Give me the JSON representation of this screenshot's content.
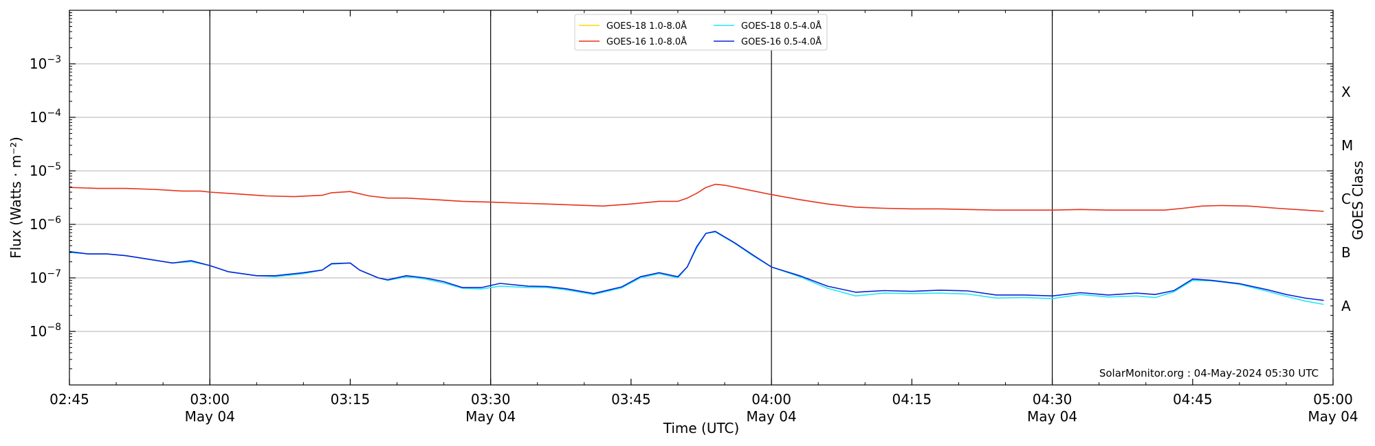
{
  "chart_data": {
    "type": "line",
    "title": "",
    "xlabel": "Time (UTC)",
    "ylabel": "Flux (Watts · m⁻²)",
    "right_axis_label": "GOES Class",
    "y_scale": "log",
    "ylim": [
      1e-09,
      0.01
    ],
    "xlim": [
      "2024-05-04T02:45",
      "2024-05-04T05:00"
    ],
    "grid": "horizontal at decades; vertical lines at half-hours",
    "legend_position": "top-center",
    "credit": "SolarMonitor.org : 04-May-2024 05:30 UTC",
    "y_ticks": [
      {
        "value": 1e-08,
        "base": "10",
        "exp": "−8"
      },
      {
        "value": 1e-07,
        "base": "10",
        "exp": "−7"
      },
      {
        "value": 1e-06,
        "base": "10",
        "exp": "−6"
      },
      {
        "value": 1e-05,
        "base": "10",
        "exp": "−5"
      },
      {
        "value": 0.0001,
        "base": "10",
        "exp": "−4"
      },
      {
        "value": 0.001,
        "base": "10",
        "exp": "−3"
      }
    ],
    "x_ticks": [
      {
        "time": "02:45",
        "date": ""
      },
      {
        "time": "03:00",
        "date": "May 04"
      },
      {
        "time": "03:15",
        "date": ""
      },
      {
        "time": "03:30",
        "date": "May 04"
      },
      {
        "time": "03:45",
        "date": ""
      },
      {
        "time": "04:00",
        "date": "May 04"
      },
      {
        "time": "04:15",
        "date": ""
      },
      {
        "time": "04:30",
        "date": "May 04"
      },
      {
        "time": "04:45",
        "date": ""
      },
      {
        "time": "05:00",
        "date": "May 04"
      }
    ],
    "goes_classes": [
      {
        "label": "X",
        "value": 0.0003
      },
      {
        "label": "M",
        "value": 3e-05
      },
      {
        "label": "C",
        "value": 3e-06
      },
      {
        "label": "B",
        "value": 3e-07
      },
      {
        "label": "A",
        "value": 3e-08
      }
    ],
    "series": [
      {
        "name": "GOES-18 1.0-8.0Å",
        "color": "#ffd700",
        "points": []
      },
      {
        "name": "GOES-16 1.0-8.0Å",
        "color": "#e8311a",
        "points": [
          [
            "02:45",
            4.9e-06
          ],
          [
            "02:48",
            4.7e-06
          ],
          [
            "02:51",
            4.7e-06
          ],
          [
            "02:54",
            4.5e-06
          ],
          [
            "02:57",
            4.2e-06
          ],
          [
            "02:59",
            4.2e-06
          ],
          [
            "03:00",
            4e-06
          ],
          [
            "03:03",
            3.7e-06
          ],
          [
            "03:06",
            3.4e-06
          ],
          [
            "03:09",
            3.3e-06
          ],
          [
            "03:12",
            3.5e-06
          ],
          [
            "03:13",
            3.9e-06
          ],
          [
            "03:15",
            4.1e-06
          ],
          [
            "03:17",
            3.4e-06
          ],
          [
            "03:19",
            3.1e-06
          ],
          [
            "03:21",
            3.1e-06
          ],
          [
            "03:24",
            2.9e-06
          ],
          [
            "03:27",
            2.7e-06
          ],
          [
            "03:30",
            2.6e-06
          ],
          [
            "03:33",
            2.5e-06
          ],
          [
            "03:36",
            2.4e-06
          ],
          [
            "03:39",
            2.3e-06
          ],
          [
            "03:42",
            2.2e-06
          ],
          [
            "03:45",
            2.4e-06
          ],
          [
            "03:48",
            2.7e-06
          ],
          [
            "03:50",
            2.7e-06
          ],
          [
            "03:51",
            3.1e-06
          ],
          [
            "03:52",
            3.8e-06
          ],
          [
            "03:53",
            4.9e-06
          ],
          [
            "03:54",
            5.6e-06
          ],
          [
            "03:55",
            5.4e-06
          ],
          [
            "03:57",
            4.6e-06
          ],
          [
            "04:00",
            3.6e-06
          ],
          [
            "04:03",
            2.9e-06
          ],
          [
            "04:06",
            2.4e-06
          ],
          [
            "04:09",
            2.1e-06
          ],
          [
            "04:12",
            2e-06
          ],
          [
            "04:15",
            1.95e-06
          ],
          [
            "04:18",
            1.95e-06
          ],
          [
            "04:21",
            1.9e-06
          ],
          [
            "04:24",
            1.85e-06
          ],
          [
            "04:27",
            1.85e-06
          ],
          [
            "04:30",
            1.85e-06
          ],
          [
            "04:33",
            1.9e-06
          ],
          [
            "04:36",
            1.85e-06
          ],
          [
            "04:39",
            1.85e-06
          ],
          [
            "04:42",
            1.85e-06
          ],
          [
            "04:44",
            2e-06
          ],
          [
            "04:46",
            2.2e-06
          ],
          [
            "04:48",
            2.25e-06
          ],
          [
            "04:51",
            2.2e-06
          ],
          [
            "04:54",
            2e-06
          ],
          [
            "04:57",
            1.85e-06
          ],
          [
            "04:59",
            1.75e-06
          ]
        ]
      },
      {
        "name": "GOES-18 0.5-4.0Å",
        "color": "#22e6f5",
        "points": [
          [
            "02:45",
            3e-07
          ],
          [
            "02:47",
            2.8e-07
          ],
          [
            "02:49",
            2.8e-07
          ],
          [
            "02:51",
            2.6e-07
          ],
          [
            "02:53",
            2.3e-07
          ],
          [
            "02:56",
            1.9e-07
          ],
          [
            "02:58",
            2e-07
          ],
          [
            "03:00",
            1.7e-07
          ],
          [
            "03:02",
            1.3e-07
          ],
          [
            "03:05",
            1.1e-07
          ],
          [
            "03:07",
            1.05e-07
          ],
          [
            "03:10",
            1.2e-07
          ],
          [
            "03:12",
            1.4e-07
          ],
          [
            "03:13",
            1.8e-07
          ],
          [
            "03:15",
            1.9e-07
          ],
          [
            "03:16",
            1.4e-07
          ],
          [
            "03:18",
            1e-07
          ],
          [
            "03:19",
            9e-08
          ],
          [
            "03:21",
            1.05e-07
          ],
          [
            "03:23",
            9.5e-08
          ],
          [
            "03:25",
            8e-08
          ],
          [
            "03:27",
            6.4e-08
          ],
          [
            "03:29",
            6.2e-08
          ],
          [
            "03:31",
            7e-08
          ],
          [
            "03:34",
            6.6e-08
          ],
          [
            "03:36",
            6.6e-08
          ],
          [
            "03:38",
            6e-08
          ],
          [
            "03:41",
            4.9e-08
          ],
          [
            "03:44",
            6.5e-08
          ],
          [
            "03:46",
            1e-07
          ],
          [
            "03:48",
            1.2e-07
          ],
          [
            "03:50",
            1e-07
          ],
          [
            "03:51",
            1.6e-07
          ],
          [
            "03:52",
            3.6e-07
          ],
          [
            "03:53",
            6.8e-07
          ],
          [
            "03:54",
            7.2e-07
          ],
          [
            "03:56",
            4.5e-07
          ],
          [
            "03:58",
            2.6e-07
          ],
          [
            "04:00",
            1.6e-07
          ],
          [
            "04:03",
            1.05e-07
          ],
          [
            "04:06",
            6.4e-08
          ],
          [
            "04:09",
            4.6e-08
          ],
          [
            "04:12",
            5.2e-08
          ],
          [
            "04:15",
            5.1e-08
          ],
          [
            "04:18",
            5.2e-08
          ],
          [
            "04:21",
            5e-08
          ],
          [
            "04:24",
            4.2e-08
          ],
          [
            "04:27",
            4.3e-08
          ],
          [
            "04:30",
            4.1e-08
          ],
          [
            "04:33",
            4.9e-08
          ],
          [
            "04:36",
            4.4e-08
          ],
          [
            "04:39",
            4.6e-08
          ],
          [
            "04:41",
            4.3e-08
          ],
          [
            "04:43",
            5.5e-08
          ],
          [
            "04:45",
            9e-08
          ],
          [
            "04:47",
            8.8e-08
          ],
          [
            "04:50",
            7.6e-08
          ],
          [
            "04:53",
            5.6e-08
          ],
          [
            "04:55",
            4.5e-08
          ],
          [
            "04:57",
            3.7e-08
          ],
          [
            "04:59",
            3.2e-08
          ]
        ]
      },
      {
        "name": "GOES-16 0.5-4.0Å",
        "color": "#0a23d6",
        "points": [
          [
            "02:45",
            3.1e-07
          ],
          [
            "02:47",
            2.8e-07
          ],
          [
            "02:49",
            2.8e-07
          ],
          [
            "02:51",
            2.6e-07
          ],
          [
            "02:53",
            2.3e-07
          ],
          [
            "02:56",
            1.9e-07
          ],
          [
            "02:58",
            2.1e-07
          ],
          [
            "03:00",
            1.7e-07
          ],
          [
            "03:02",
            1.3e-07
          ],
          [
            "03:05",
            1.1e-07
          ],
          [
            "03:07",
            1.1e-07
          ],
          [
            "03:10",
            1.25e-07
          ],
          [
            "03:12",
            1.4e-07
          ],
          [
            "03:13",
            1.85e-07
          ],
          [
            "03:15",
            1.9e-07
          ],
          [
            "03:16",
            1.4e-07
          ],
          [
            "03:18",
            1e-07
          ],
          [
            "03:19",
            9.2e-08
          ],
          [
            "03:21",
            1.1e-07
          ],
          [
            "03:23",
            1e-07
          ],
          [
            "03:25",
            8.5e-08
          ],
          [
            "03:27",
            6.6e-08
          ],
          [
            "03:29",
            6.6e-08
          ],
          [
            "03:31",
            7.9e-08
          ],
          [
            "03:34",
            7e-08
          ],
          [
            "03:36",
            6.9e-08
          ],
          [
            "03:38",
            6.3e-08
          ],
          [
            "03:41",
            5.1e-08
          ],
          [
            "03:44",
            6.8e-08
          ],
          [
            "03:46",
            1.05e-07
          ],
          [
            "03:48",
            1.25e-07
          ],
          [
            "03:50",
            1.05e-07
          ],
          [
            "03:51",
            1.6e-07
          ],
          [
            "03:52",
            3.8e-07
          ],
          [
            "03:53",
            6.8e-07
          ],
          [
            "03:54",
            7.4e-07
          ],
          [
            "03:56",
            4.6e-07
          ],
          [
            "03:58",
            2.7e-07
          ],
          [
            "04:00",
            1.6e-07
          ],
          [
            "04:03",
            1.1e-07
          ],
          [
            "04:06",
            7e-08
          ],
          [
            "04:09",
            5.4e-08
          ],
          [
            "04:12",
            5.8e-08
          ],
          [
            "04:15",
            5.6e-08
          ],
          [
            "04:18",
            5.9e-08
          ],
          [
            "04:21",
            5.7e-08
          ],
          [
            "04:24",
            4.8e-08
          ],
          [
            "04:27",
            4.8e-08
          ],
          [
            "04:30",
            4.6e-08
          ],
          [
            "04:33",
            5.3e-08
          ],
          [
            "04:36",
            4.8e-08
          ],
          [
            "04:39",
            5.2e-08
          ],
          [
            "04:41",
            4.9e-08
          ],
          [
            "04:43",
            5.8e-08
          ],
          [
            "04:45",
            9.5e-08
          ],
          [
            "04:47",
            9e-08
          ],
          [
            "04:50",
            7.8e-08
          ],
          [
            "04:53",
            6e-08
          ],
          [
            "04:55",
            4.9e-08
          ],
          [
            "04:57",
            4.2e-08
          ],
          [
            "04:59",
            3.8e-08
          ]
        ]
      }
    ]
  }
}
